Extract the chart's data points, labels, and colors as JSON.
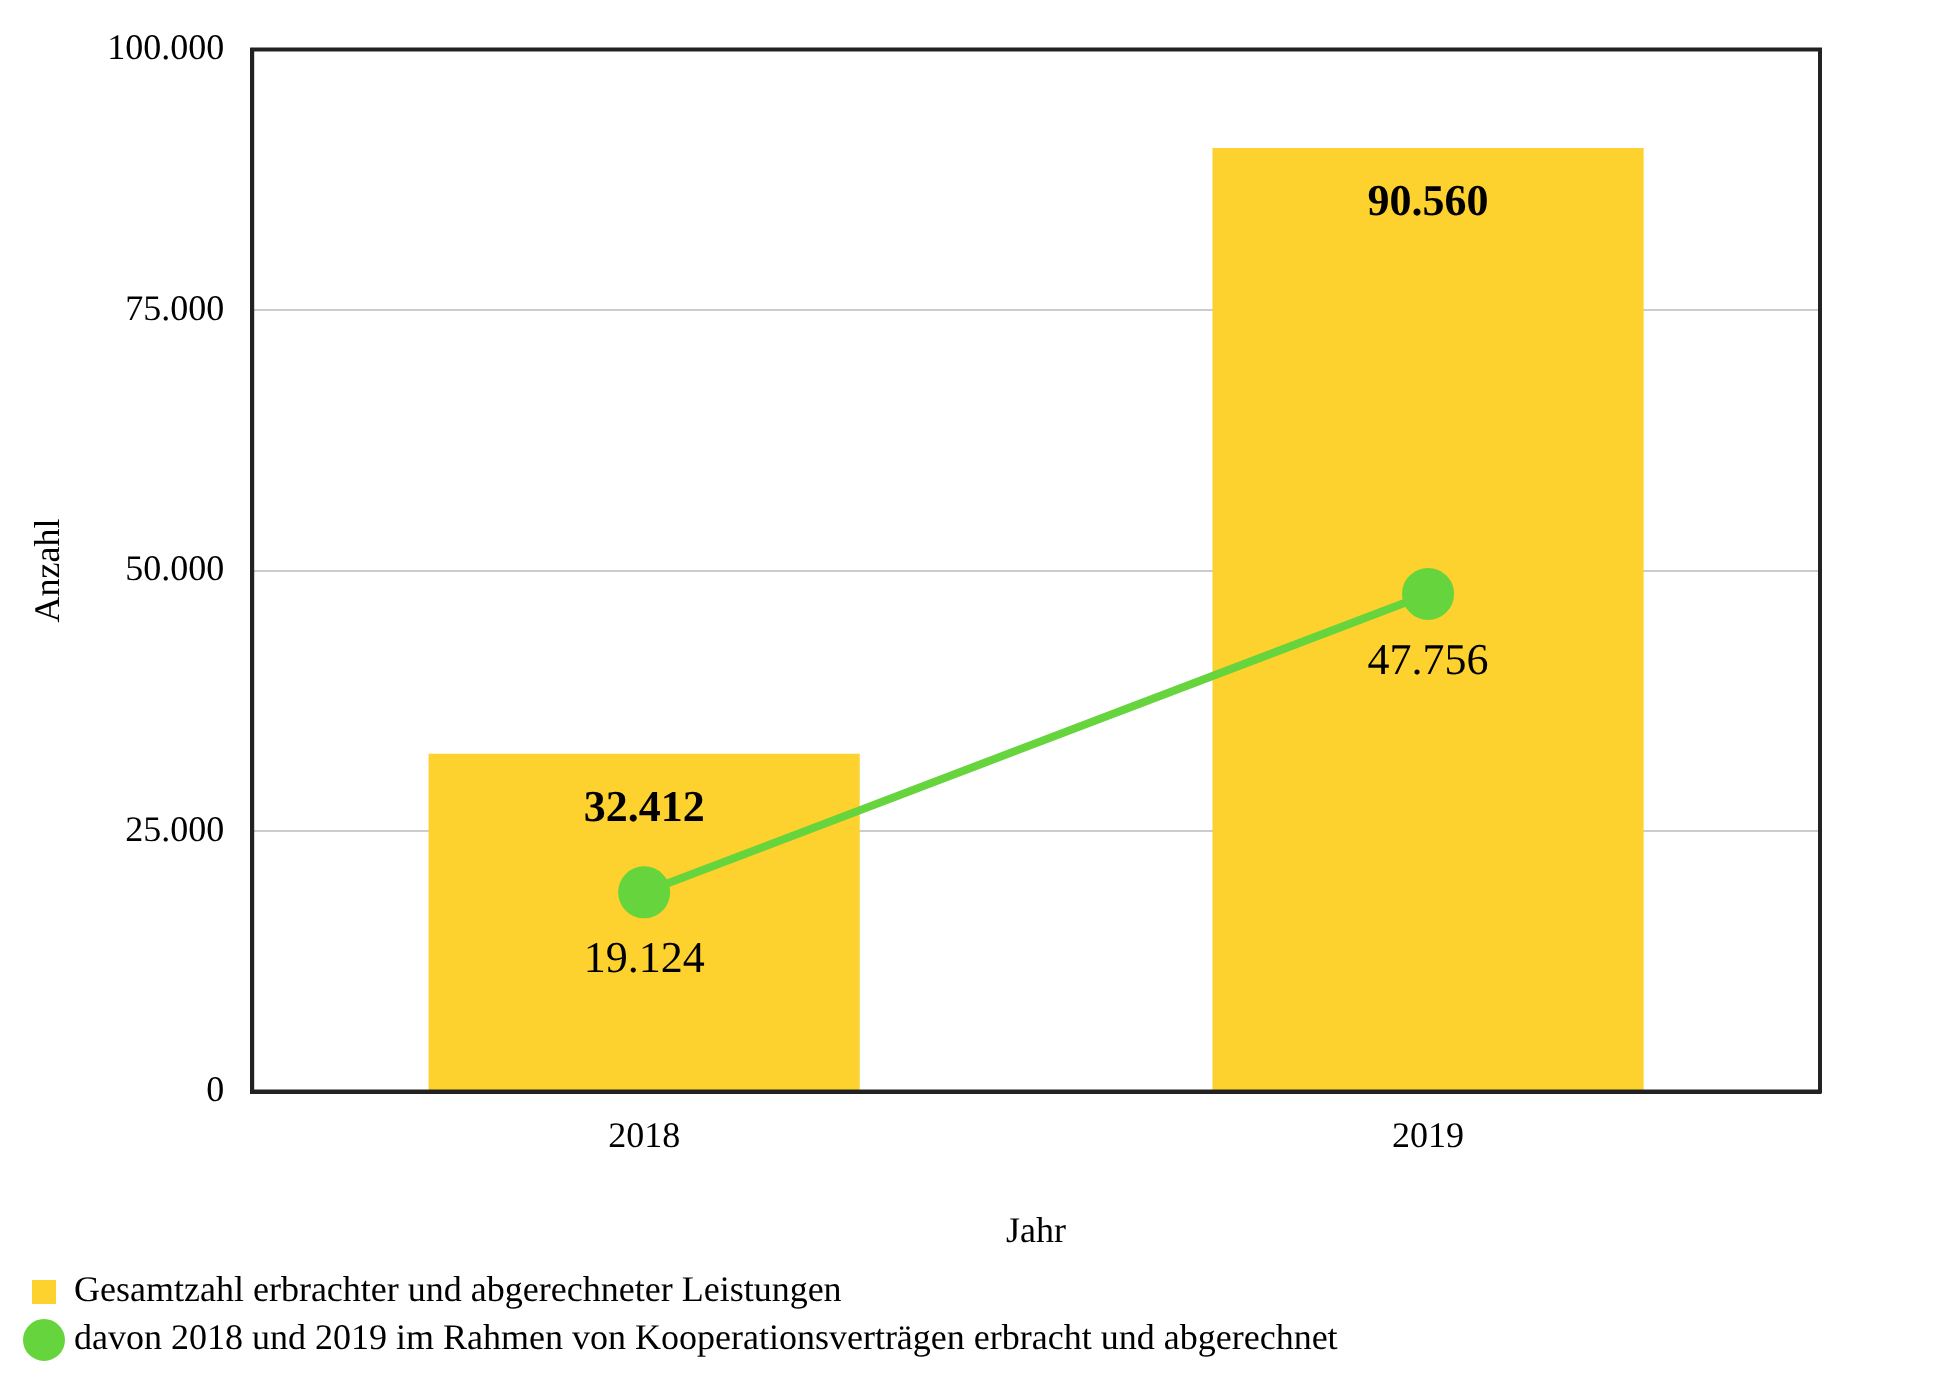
{
  "chart_data": {
    "type": "bar",
    "xlabel": "Jahr",
    "ylabel": "Anzahl",
    "categories": [
      "2018",
      "2019"
    ],
    "series": [
      {
        "name": "Gesamtzahl erbrachter und abgerechneter Leistungen",
        "color": "#fdd22e",
        "values": [
          32412,
          90560
        ],
        "value_labels": [
          "32.412",
          "90.560"
        ]
      },
      {
        "name": "davon 2018 und 2019 im Rahmen von Kooperationsverträgen erbracht und abgerechnet",
        "type": "line",
        "color": "#66d43c",
        "values": [
          19124,
          47756
        ],
        "value_labels": [
          "19.124",
          "47.756"
        ]
      }
    ],
    "ylim": [
      0,
      100000
    ],
    "yticks": [
      {
        "value": 0,
        "label": "0"
      },
      {
        "value": 25000,
        "label": "25.000"
      },
      {
        "value": 50000,
        "label": "50.000"
      },
      {
        "value": 75000,
        "label": "75.000"
      },
      {
        "value": 100000,
        "label": "100.000"
      }
    ],
    "grid": "y",
    "legend": "bottom",
    "marker": "circle",
    "line_style": "solid"
  }
}
